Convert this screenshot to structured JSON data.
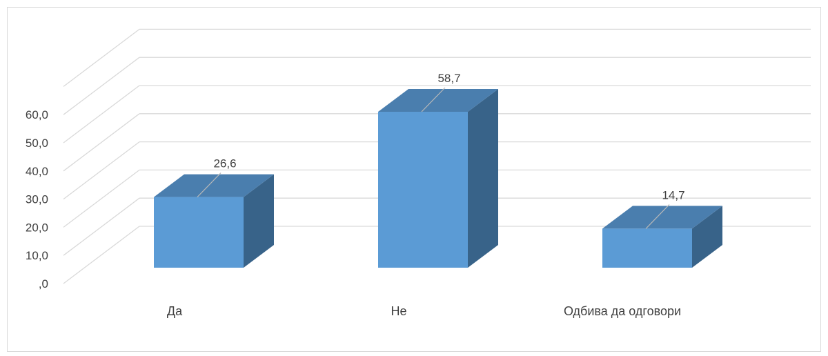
{
  "colors": {
    "bar_front": "#5b9bd5",
    "bar_top": "#4a7eae",
    "bar_side": "#386389",
    "grid": "#d9d9d9",
    "leader": "#b8b8b8"
  },
  "chart_data": {
    "type": "bar",
    "style": "3d-column",
    "categories": [
      "Да",
      "Не",
      "Одбива да одговори"
    ],
    "values": [
      26.6,
      58.7,
      14.7
    ],
    "data_labels": [
      "26,6",
      "58,7",
      "14,7"
    ],
    "y_ticks": [
      ",0",
      "10,0",
      "20,0",
      "30,0",
      "40,0",
      "50,0",
      "60,0"
    ],
    "ylim": [
      0,
      70
    ],
    "grid": true,
    "legend": "none",
    "title": "",
    "xlabel": "",
    "ylabel": ""
  }
}
